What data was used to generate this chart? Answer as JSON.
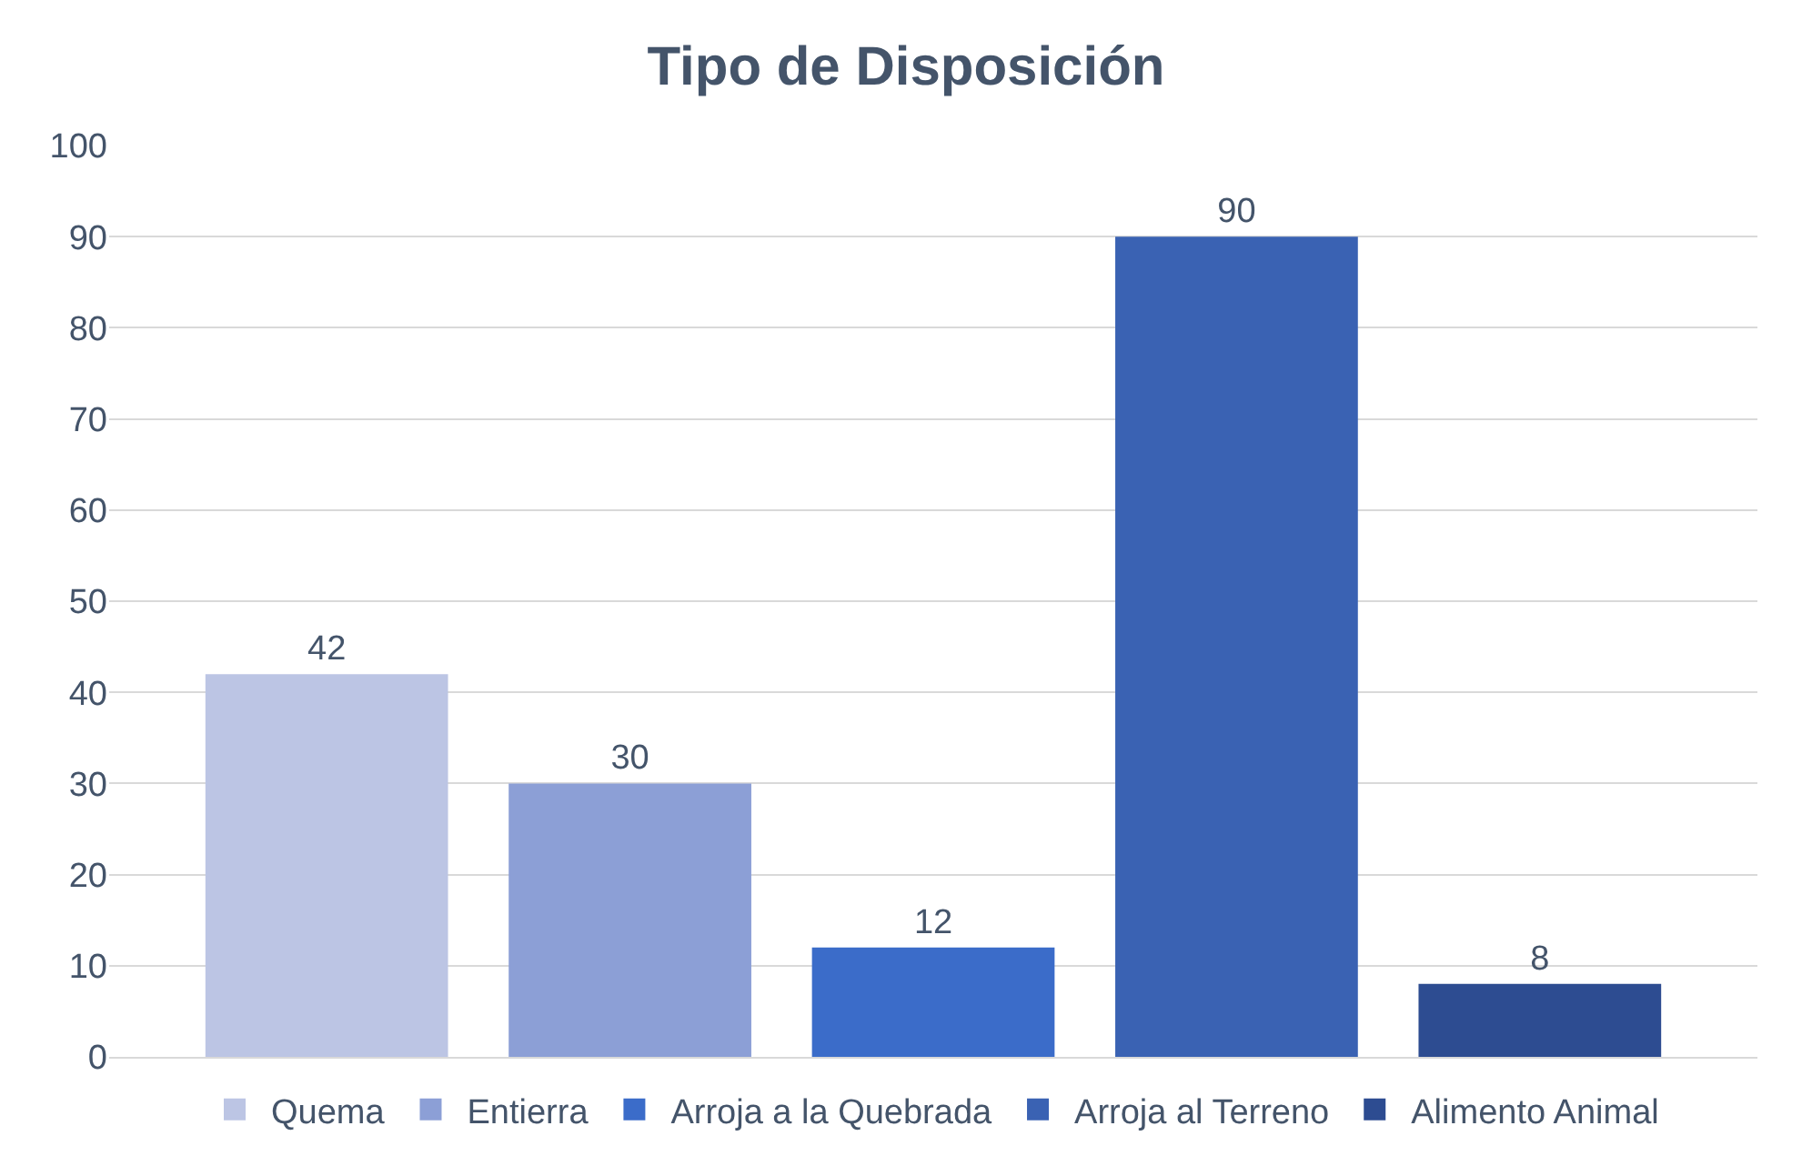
{
  "chart_data": {
    "type": "bar",
    "title": "Tipo de Disposición",
    "categories": [
      null
    ],
    "series": [
      {
        "name": "Quema",
        "color": "#bcc5e4",
        "values": [
          42
        ]
      },
      {
        "name": "Entierra",
        "color": "#8c9fd6",
        "values": [
          30
        ]
      },
      {
        "name": "Arroja a la Quebrada",
        "color": "#3b6cc9",
        "values": [
          12
        ]
      },
      {
        "name": "Arroja al Terreno",
        "color": "#3a62b3",
        "values": [
          90
        ]
      },
      {
        "name": "Alimento Animal",
        "color": "#2d4c91",
        "values": [
          8
        ]
      }
    ],
    "ylim": [
      0,
      100
    ],
    "yticks": [
      0,
      10,
      20,
      30,
      40,
      50,
      60,
      70,
      80,
      90,
      100
    ],
    "grid": true,
    "legend": "bottom",
    "data_labels": true
  }
}
